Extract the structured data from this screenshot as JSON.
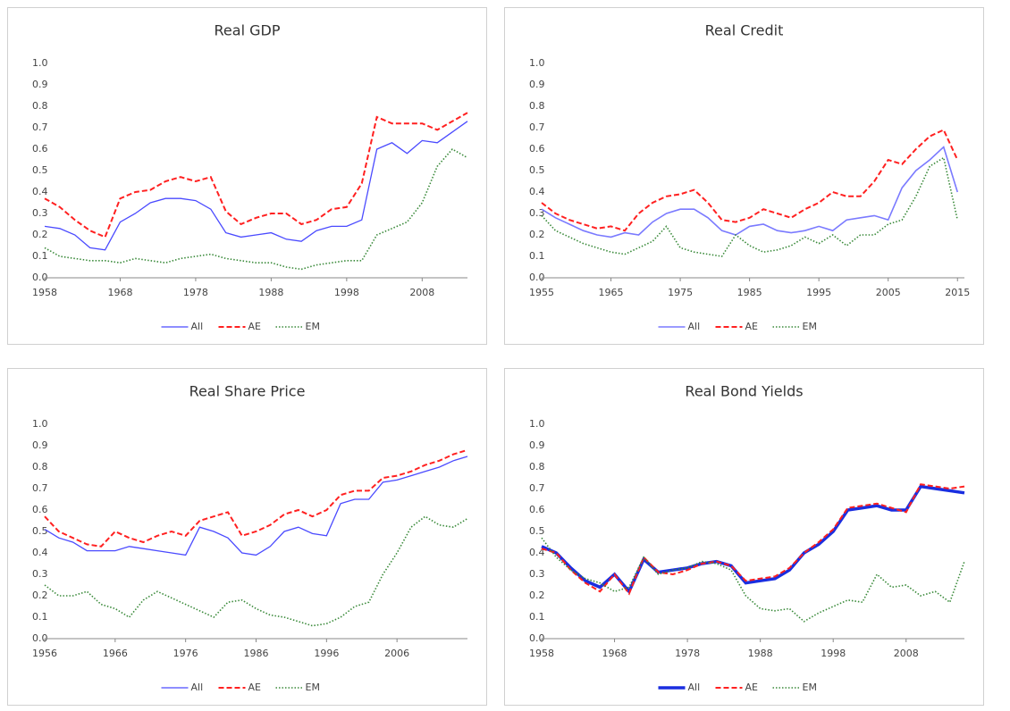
{
  "chart_data": [
    {
      "type": "line",
      "title": "Real GDP",
      "x": [
        1958,
        1960,
        1962,
        1964,
        1966,
        1968,
        1970,
        1972,
        1974,
        1976,
        1978,
        1980,
        1982,
        1984,
        1986,
        1988,
        1990,
        1992,
        1994,
        1996,
        1998,
        2000,
        2002,
        2004,
        2006,
        2008,
        2010,
        2012,
        2014
      ],
      "xlim": [
        1958,
        2014
      ],
      "xticks": [
        1958,
        1968,
        1978,
        1988,
        1998,
        2008
      ],
      "ylim": [
        0,
        1
      ],
      "yticks": [
        {
          "value": 0,
          "label": "0.0"
        },
        0.1,
        0.2,
        0.3,
        0.4,
        0.5,
        0.6,
        0.7,
        0.8,
        0.9,
        {
          "value": 1,
          "label": "1.0"
        }
      ],
      "series": [
        {
          "name": "All",
          "color": "#4a4aff",
          "style": "solid",
          "width": 1.3,
          "values": [
            0.24,
            0.23,
            0.2,
            0.14,
            0.13,
            0.26,
            0.3,
            0.35,
            0.37,
            0.37,
            0.36,
            0.32,
            0.21,
            0.19,
            0.2,
            0.21,
            0.18,
            0.17,
            0.22,
            0.24,
            0.24,
            0.27,
            0.6,
            0.63,
            0.58,
            0.64,
            0.63,
            0.68,
            0.73
          ]
        },
        {
          "name": "AE",
          "color": "#ff2020",
          "style": "dashed",
          "width": 2,
          "values": [
            0.37,
            0.33,
            0.27,
            0.22,
            0.19,
            0.37,
            0.4,
            0.41,
            0.45,
            0.47,
            0.45,
            0.47,
            0.31,
            0.25,
            0.28,
            0.3,
            0.3,
            0.25,
            0.27,
            0.32,
            0.33,
            0.44,
            0.75,
            0.72,
            0.72,
            0.72,
            0.69,
            0.73,
            0.77
          ]
        },
        {
          "name": "EM",
          "color": "#3a8a3a",
          "style": "dotted",
          "width": 1.6,
          "values": [
            0.14,
            0.1,
            0.09,
            0.08,
            0.08,
            0.07,
            0.09,
            0.08,
            0.07,
            0.09,
            0.1,
            0.11,
            0.09,
            0.08,
            0.07,
            0.07,
            0.05,
            0.04,
            0.06,
            0.07,
            0.08,
            0.08,
            0.2,
            0.23,
            0.26,
            0.35,
            0.52,
            0.6,
            0.56
          ]
        }
      ]
    },
    {
      "type": "line",
      "title": "Real Credit",
      "x": [
        1955,
        1957,
        1959,
        1961,
        1963,
        1965,
        1967,
        1969,
        1971,
        1973,
        1975,
        1977,
        1979,
        1981,
        1983,
        1985,
        1987,
        1989,
        1991,
        1993,
        1995,
        1997,
        1999,
        2001,
        2003,
        2005,
        2007,
        2009,
        2011,
        2013,
        2015
      ],
      "xlim": [
        1955,
        2016
      ],
      "xticks": [
        1955,
        1965,
        1975,
        1985,
        1995,
        2005,
        2015
      ],
      "ylim": [
        0,
        1
      ],
      "yticks": [
        {
          "value": 0,
          "label": "0.0"
        },
        0.1,
        0.2,
        0.3,
        0.4,
        0.5,
        0.6,
        0.7,
        0.8,
        0.9,
        {
          "value": 1,
          "label": "1.0"
        }
      ],
      "series": [
        {
          "name": "All",
          "color": "#7a7aff",
          "style": "solid",
          "width": 1.6,
          "values": [
            0.32,
            0.28,
            0.25,
            0.22,
            0.2,
            0.19,
            0.21,
            0.2,
            0.26,
            0.3,
            0.32,
            0.32,
            0.28,
            0.22,
            0.2,
            0.24,
            0.25,
            0.22,
            0.21,
            0.22,
            0.24,
            0.22,
            0.27,
            0.28,
            0.29,
            0.27,
            0.42,
            0.5,
            0.55,
            0.61,
            0.4
          ]
        },
        {
          "name": "AE",
          "color": "#ff2020",
          "style": "dashed",
          "width": 2,
          "values": [
            0.35,
            0.3,
            0.27,
            0.25,
            0.23,
            0.24,
            0.22,
            0.3,
            0.35,
            0.38,
            0.39,
            0.41,
            0.35,
            0.27,
            0.26,
            0.28,
            0.32,
            0.3,
            0.28,
            0.32,
            0.35,
            0.4,
            0.38,
            0.38,
            0.45,
            0.55,
            0.53,
            0.6,
            0.66,
            0.69,
            0.55
          ]
        },
        {
          "name": "EM",
          "color": "#3a8a3a",
          "style": "dotted",
          "width": 1.6,
          "values": [
            0.29,
            0.22,
            0.19,
            0.16,
            0.14,
            0.12,
            0.11,
            0.14,
            0.17,
            0.24,
            0.14,
            0.12,
            0.11,
            0.1,
            0.2,
            0.15,
            0.12,
            0.13,
            0.15,
            0.19,
            0.16,
            0.2,
            0.15,
            0.2,
            0.2,
            0.25,
            0.27,
            0.38,
            0.52,
            0.56,
            0.27
          ]
        }
      ]
    },
    {
      "type": "line",
      "title": "Real Share Price",
      "x": [
        1956,
        1958,
        1960,
        1962,
        1964,
        1966,
        1968,
        1970,
        1972,
        1974,
        1976,
        1978,
        1980,
        1982,
        1984,
        1986,
        1988,
        1990,
        1992,
        1994,
        1996,
        1998,
        2000,
        2002,
        2004,
        2006,
        2008,
        2010,
        2012,
        2014,
        2016
      ],
      "xlim": [
        1956,
        2016
      ],
      "xticks": [
        1956,
        1966,
        1976,
        1986,
        1996,
        2006
      ],
      "ylim": [
        0,
        1
      ],
      "yticks": [
        {
          "value": 0,
          "label": "0.0"
        },
        0.1,
        0.2,
        0.3,
        0.4,
        0.5,
        0.6,
        0.7,
        0.8,
        0.9,
        {
          "value": 1,
          "label": "1.0"
        }
      ],
      "series": [
        {
          "name": "All",
          "color": "#4a4aff",
          "style": "solid",
          "width": 1.3,
          "values": [
            0.51,
            0.47,
            0.45,
            0.41,
            0.41,
            0.41,
            0.43,
            0.42,
            0.41,
            0.4,
            0.39,
            0.52,
            0.5,
            0.47,
            0.4,
            0.39,
            0.43,
            0.5,
            0.52,
            0.49,
            0.48,
            0.63,
            0.65,
            0.65,
            0.73,
            0.74,
            0.76,
            0.78,
            0.8,
            0.83,
            0.85
          ]
        },
        {
          "name": "AE",
          "color": "#ff2020",
          "style": "dashed",
          "width": 2,
          "values": [
            0.57,
            0.5,
            0.47,
            0.44,
            0.43,
            0.5,
            0.47,
            0.45,
            0.48,
            0.5,
            0.48,
            0.55,
            0.57,
            0.59,
            0.48,
            0.5,
            0.53,
            0.58,
            0.6,
            0.57,
            0.6,
            0.67,
            0.69,
            0.69,
            0.75,
            0.76,
            0.78,
            0.81,
            0.83,
            0.86,
            0.88
          ]
        },
        {
          "name": "EM",
          "color": "#3a8a3a",
          "style": "dotted",
          "width": 1.6,
          "values": [
            0.25,
            0.2,
            0.2,
            0.22,
            0.16,
            0.14,
            0.1,
            0.18,
            0.22,
            0.19,
            0.16,
            0.13,
            0.1,
            0.17,
            0.18,
            0.14,
            0.11,
            0.1,
            0.08,
            0.06,
            0.07,
            0.1,
            0.15,
            0.17,
            0.3,
            0.4,
            0.52,
            0.57,
            0.53,
            0.52,
            0.56
          ]
        }
      ]
    },
    {
      "type": "line",
      "title": "Real Bond Yields",
      "x": [
        1958,
        1960,
        1962,
        1964,
        1966,
        1968,
        1970,
        1972,
        1974,
        1976,
        1978,
        1980,
        1982,
        1984,
        1986,
        1988,
        1990,
        1992,
        1994,
        1996,
        1998,
        2000,
        2002,
        2004,
        2006,
        2008,
        2010,
        2012,
        2014,
        2016
      ],
      "xlim": [
        1958,
        2016
      ],
      "xticks": [
        1958,
        1968,
        1978,
        1988,
        1998,
        2008
      ],
      "ylim": [
        0,
        1
      ],
      "yticks": [
        {
          "value": 0,
          "label": "0.0"
        },
        0.1,
        0.2,
        0.3,
        0.4,
        0.5,
        0.6,
        0.7,
        0.8,
        0.9,
        {
          "value": 1,
          "label": "1.0"
        }
      ],
      "series": [
        {
          "name": "All",
          "color": "#1a2ee0",
          "style": "solid",
          "width": 3.5,
          "values": [
            0.43,
            0.4,
            0.33,
            0.27,
            0.24,
            0.3,
            0.22,
            0.37,
            0.31,
            0.32,
            0.33,
            0.35,
            0.36,
            0.34,
            0.26,
            0.27,
            0.28,
            0.32,
            0.4,
            0.44,
            0.5,
            0.6,
            0.61,
            0.62,
            0.6,
            0.6,
            0.71,
            0.7,
            0.69,
            0.68
          ]
        },
        {
          "name": "AE",
          "color": "#ff2020",
          "style": "dashed",
          "width": 2,
          "values": [
            0.42,
            0.4,
            0.32,
            0.26,
            0.22,
            0.3,
            0.21,
            0.38,
            0.31,
            0.3,
            0.32,
            0.35,
            0.36,
            0.34,
            0.27,
            0.28,
            0.29,
            0.33,
            0.4,
            0.45,
            0.51,
            0.61,
            0.62,
            0.63,
            0.61,
            0.59,
            0.72,
            0.71,
            0.7,
            0.71
          ]
        },
        {
          "name": "EM",
          "color": "#3a8a3a",
          "style": "dotted",
          "width": 1.6,
          "values": [
            0.47,
            0.38,
            0.32,
            0.28,
            0.26,
            0.22,
            0.24,
            0.38,
            0.3,
            0.32,
            0.33,
            0.36,
            0.35,
            0.32,
            0.2,
            0.14,
            0.13,
            0.14,
            0.08,
            0.12,
            0.15,
            0.18,
            0.17,
            0.3,
            0.24,
            0.25,
            0.2,
            0.22,
            0.17,
            0.36
          ]
        }
      ]
    }
  ]
}
